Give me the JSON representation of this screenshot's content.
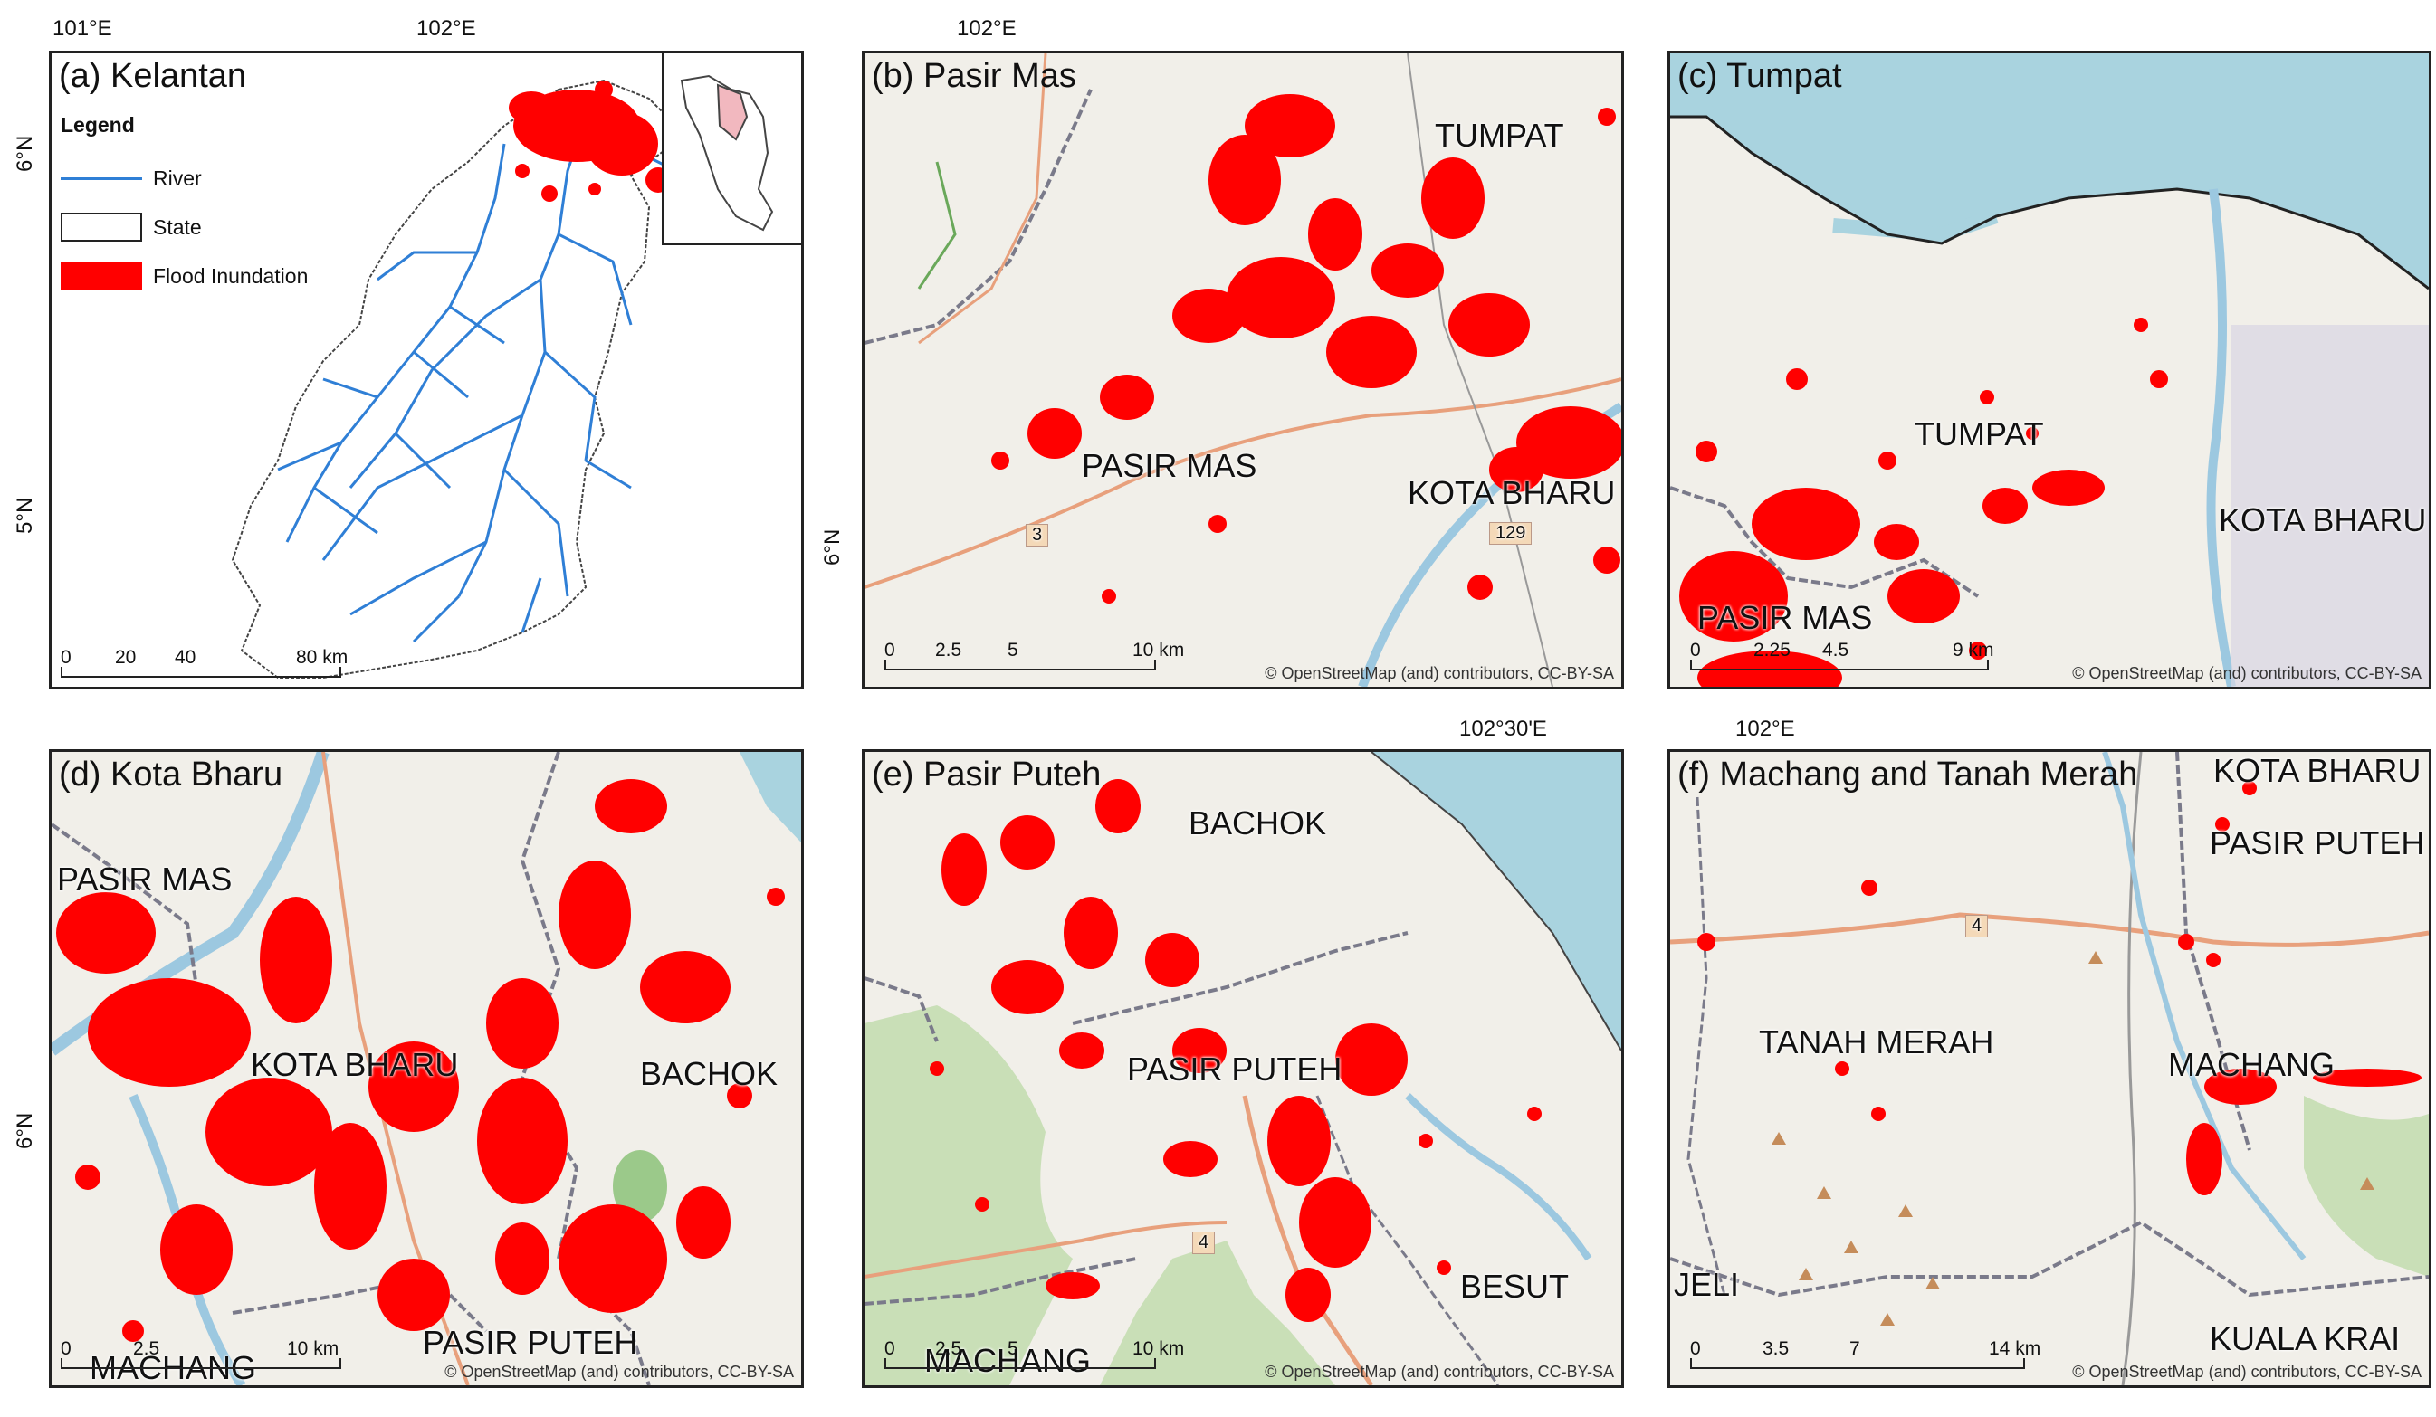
{
  "figure": {
    "top_ticks": [
      "101°E",
      "102°E",
      "102°E",
      "102°30'E",
      "102°E"
    ],
    "side_ticks": [
      "6°N",
      "5°N",
      "6°N",
      "6°N"
    ]
  },
  "panel_a": {
    "title": "(a) Kelantan",
    "legend": {
      "heading": "Legend",
      "items": [
        {
          "label": "River",
          "color": "#2f7fd6"
        },
        {
          "label": "State",
          "color": "#ffffff"
        },
        {
          "label": "Flood Inundation",
          "color": "#ff0000"
        }
      ]
    },
    "scale": {
      "ticks": [
        "0",
        "20",
        "40",
        "80 km"
      ]
    }
  },
  "panel_b": {
    "title": "(b) Pasir Mas",
    "places": [
      "TUMPAT",
      "PASIR MAS",
      "KOTA BHARU"
    ],
    "road_labels": [
      "3",
      "129"
    ],
    "scale": {
      "ticks": [
        "0",
        "2.5",
        "5",
        "10 km"
      ]
    },
    "attribution": "© OpenStreetMap (and) contributors, CC-BY-SA"
  },
  "panel_c": {
    "title": "(c) Tumpat",
    "places": [
      "TUMPAT",
      "KOTA BHARU",
      "PASIR MAS"
    ],
    "scale": {
      "ticks": [
        "0",
        "2.25",
        "4.5",
        "9 km"
      ]
    },
    "attribution": "© OpenStreetMap (and) contributors, CC-BY-SA"
  },
  "panel_d": {
    "title": "(d) Kota Bharu",
    "places": [
      "PASIR MAS",
      "KOTA BHARU",
      "BACHOK",
      "PASIR PUTEH",
      "MACHANG"
    ],
    "scale": {
      "ticks": [
        "0",
        "2.5",
        "10 km"
      ]
    },
    "attribution": "© OpenStreetMap (and) contributors, CC-BY-SA"
  },
  "panel_e": {
    "title": "(e) Pasir Puteh",
    "places": [
      "BACHOK",
      "PASIR PUTEH",
      "BESUT",
      "MACHANG"
    ],
    "road_labels": [
      "4"
    ],
    "scale": {
      "ticks": [
        "0",
        "2.5",
        "5",
        "10 km"
      ]
    },
    "attribution": "© OpenStreetMap (and) contributors, CC-BY-SA"
  },
  "panel_f": {
    "title": "(f) Machang and Tanah Merah",
    "places": [
      "KOTA BHARU",
      "PASIR PUTEH",
      "TANAH MERAH",
      "MACHANG",
      "JELI",
      "KUALA KRAI"
    ],
    "road_labels": [
      "4"
    ],
    "scale": {
      "ticks": [
        "0",
        "3.5",
        "7",
        "14 km"
      ]
    },
    "attribution": "© OpenStreetMap (and) contributors, CC-BY-SA"
  },
  "colors": {
    "flood": "#ff0000",
    "river": "#2f7fd6",
    "sea": "#a9d3df",
    "land": "#f1efe9",
    "forest": "#c9dfb7",
    "road": "#e8a07c"
  }
}
